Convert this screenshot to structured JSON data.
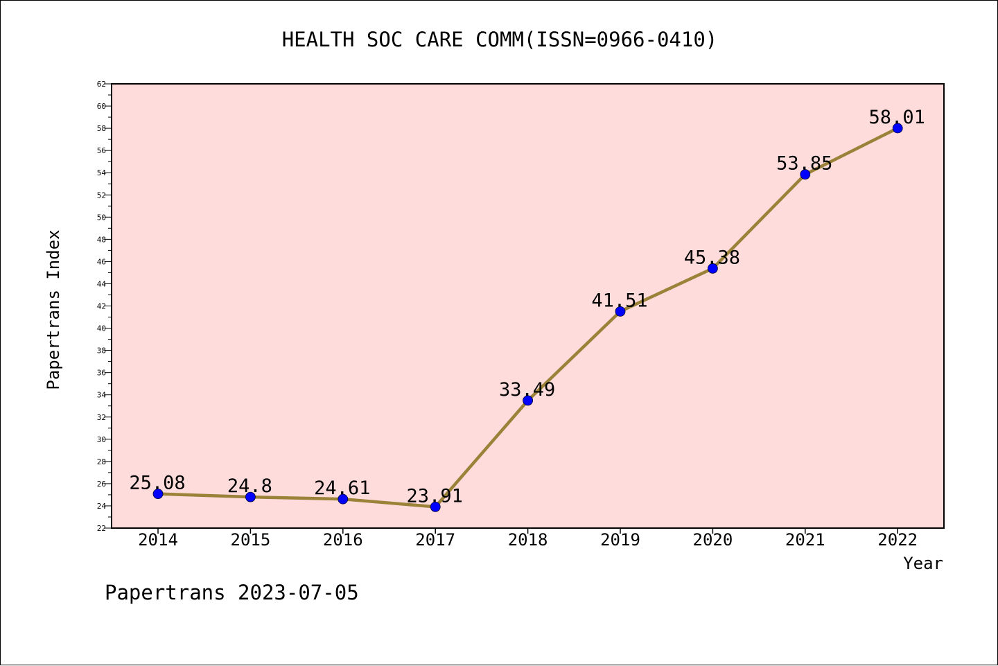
{
  "chart_data": {
    "type": "line",
    "title": "HEALTH SOC CARE COMM(ISSN=0966-0410)",
    "xlabel": "Year",
    "ylabel": "Papertrans Index",
    "x": [
      "2014",
      "2015",
      "2016",
      "2017",
      "2018",
      "2019",
      "2020",
      "2021",
      "2022"
    ],
    "values": [
      25.08,
      24.8,
      24.61,
      23.91,
      33.49,
      41.51,
      45.38,
      53.85,
      58.01
    ],
    "data_labels": [
      "25.08",
      "24.8",
      "24.61",
      "23.91",
      "33.49",
      "41.51",
      "45.38",
      "53.85",
      "58.01"
    ],
    "ylim": [
      22,
      62
    ],
    "y_ticks": [
      22,
      24,
      26,
      28,
      30,
      32,
      34,
      36,
      38,
      40,
      42,
      44,
      46,
      48,
      50,
      52,
      54,
      56,
      58,
      60,
      62
    ],
    "grid": false,
    "colors": {
      "plot_background": "#ffdcdc",
      "line": "#9b8239",
      "marker": "#0000ff"
    }
  },
  "footer": "Papertrans 2023-07-05"
}
